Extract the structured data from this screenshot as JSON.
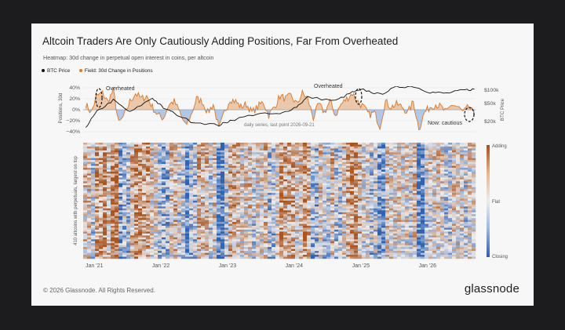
{
  "title": "Altcoin Traders Are Only Cautiously Adding Positions, Far From Overheated",
  "subtitle": "Heatmap: 30d change in perpetual open interest in coins, per altcoin",
  "legend": [
    {
      "label": "BTC Price",
      "color": "#111111"
    },
    {
      "label": "Field: 30d Change in Positions",
      "color": "#e07b28"
    }
  ],
  "colors": {
    "orange": "#d9782b",
    "blue": "#3f73c9",
    "black": "#111111",
    "background": "#f7f7f7"
  },
  "footer": "© 2026 Glassnode. All Rights Reserved.",
  "logo": "glassnode",
  "chart_data": [
    {
      "type": "line",
      "x_ticks": [
        "Jan '21",
        "Jan '22",
        "Jan '23",
        "Jan '24",
        "Jan '25",
        "Jan '26"
      ],
      "x_range": [
        "2020-11-01",
        "2026-09-21"
      ],
      "ylabel": "Positions, 30d",
      "y2label": "BTC Price",
      "y_ticks": [
        "40%",
        "20%",
        "0%",
        "−20%",
        "−40%"
      ],
      "y2_ticks": [
        "$100k",
        "$50k",
        "$20k"
      ],
      "ylim": [
        -40,
        40
      ],
      "annotations": {
        "overheated_1": "Overheated",
        "overheated_2": "Overheated",
        "now": "Now: cautious",
        "note": "daily series, last point 2026-09-21"
      },
      "series": [
        {
          "name": "Field: 30d Change in Positions",
          "dates": [
            "2020-11",
            "2020-12",
            "2021-01",
            "2021-02",
            "2021-03",
            "2021-04",
            "2021-05",
            "2021-06",
            "2021-07",
            "2021-08",
            "2021-09",
            "2021-10",
            "2021-11",
            "2021-12",
            "2022-01",
            "2022-02",
            "2022-03",
            "2022-04",
            "2022-05",
            "2022-06",
            "2022-07",
            "2022-08",
            "2022-09",
            "2022-10",
            "2022-11",
            "2022-12",
            "2023-01",
            "2023-02",
            "2023-03",
            "2023-04",
            "2023-05",
            "2023-06",
            "2023-07",
            "2023-08",
            "2023-09",
            "2023-10",
            "2023-11",
            "2023-12",
            "2024-01",
            "2024-02",
            "2024-03",
            "2024-04",
            "2024-05",
            "2024-06",
            "2024-07",
            "2024-08",
            "2024-09",
            "2024-10",
            "2024-11",
            "2024-12",
            "2025-01",
            "2025-02",
            "2025-03",
            "2025-04",
            "2025-05",
            "2025-06",
            "2025-07",
            "2025-08",
            "2025-09",
            "2025-10",
            "2025-11",
            "2025-12",
            "2026-01",
            "2026-02",
            "2026-03",
            "2026-04",
            "2026-05",
            "2026-06",
            "2026-07",
            "2026-08",
            "2026-09"
          ],
          "values": [
            10,
            -5,
            25,
            30,
            15,
            35,
            -25,
            -10,
            15,
            30,
            20,
            25,
            5,
            -10,
            -15,
            10,
            15,
            -5,
            -30,
            -10,
            20,
            15,
            -5,
            10,
            -35,
            -5,
            20,
            15,
            5,
            10,
            -5,
            5,
            15,
            -10,
            5,
            25,
            20,
            25,
            10,
            30,
            20,
            -15,
            10,
            -5,
            15,
            -10,
            10,
            20,
            30,
            15,
            5,
            -10,
            -5,
            -30,
            15,
            5,
            10,
            5,
            -5,
            15,
            -35,
            -5,
            5,
            10,
            5,
            -5,
            10,
            5,
            -5,
            5,
            -10
          ]
        },
        {
          "name": "BTC Price",
          "dates": [
            "2020-11",
            "2021-01",
            "2021-04",
            "2021-07",
            "2021-11",
            "2022-01",
            "2022-06",
            "2022-11",
            "2023-01",
            "2023-06",
            "2023-10",
            "2024-01",
            "2024-03",
            "2024-08",
            "2024-11",
            "2025-01",
            "2025-04",
            "2025-07",
            "2025-10",
            "2026-01",
            "2026-04",
            "2026-07",
            "2026-09"
          ],
          "values": [
            15000,
            33000,
            60000,
            32000,
            67000,
            40000,
            20000,
            16500,
            21000,
            30000,
            29000,
            43000,
            70000,
            58000,
            90000,
            102000,
            80000,
            118000,
            122000,
            90000,
            85000,
            100000,
            105000
          ]
        }
      ]
    },
    {
      "type": "heatmap",
      "ylabel": "410 altcoins with perpetuals, largest on top",
      "rows": 410,
      "x_ticks": [
        "Jan '21",
        "Jan '22",
        "Jan '23",
        "Jan '24",
        "Jan '25",
        "Jan '26"
      ],
      "colorbar_labels": {
        "top": "Adding",
        "middle": "Flat",
        "bottom": "Closing"
      },
      "colorscale": [
        "#a64f1c",
        "#e8e8e8",
        "#2d5fb0"
      ]
    }
  ]
}
